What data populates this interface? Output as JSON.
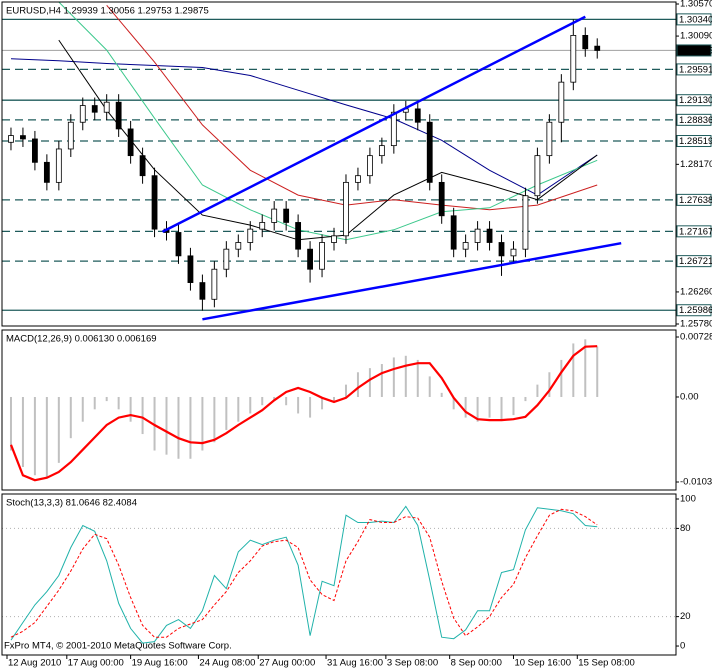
{
  "chart_data": [
    {
      "type": "candlestick",
      "title": "EURUSD,H4  1.29939 1.30056 1.29753 1.29875",
      "xlim": [
        -1.25,
        167.75
      ],
      "ylim": [
        1.2575,
        1.306
      ],
      "yticks": [
        {
          "value": 1.3057,
          "label": "1.30570"
        },
        {
          "value": 1.3009,
          "label": "1.30090"
        },
        {
          "value": 1.2817,
          "label": "1.28170"
        },
        {
          "value": 1.2626,
          "label": "1.26260"
        },
        {
          "value": 1.2578,
          "label": "1.25780"
        }
      ],
      "x": [
        1,
        4,
        7,
        10,
        13,
        16,
        19,
        22,
        25,
        28,
        31,
        34,
        37,
        40,
        43,
        46,
        49,
        52,
        55,
        58,
        61,
        64,
        67,
        70,
        73,
        76,
        79,
        82,
        85,
        88,
        91,
        94,
        97,
        100,
        103,
        106,
        109,
        112,
        115,
        118,
        121,
        124,
        127,
        130,
        133,
        136,
        139,
        142,
        145,
        148
      ],
      "open": [
        1.285,
        1.286,
        1.2855,
        1.282,
        1.279,
        1.284,
        1.288,
        1.2905,
        1.2895,
        1.291,
        1.287,
        1.283,
        1.28,
        1.272,
        1.2715,
        1.268,
        1.264,
        1.2615,
        1.266,
        1.269,
        1.27,
        1.272,
        1.273,
        1.275,
        1.273,
        1.269,
        1.266,
        1.27,
        1.271,
        1.279,
        1.28,
        1.283,
        1.2845,
        1.2895,
        1.29,
        1.288,
        1.279,
        1.274,
        1.269,
        1.27,
        1.272,
        1.27,
        1.268,
        1.269,
        1.277,
        1.283,
        1.288,
        1.294,
        1.301,
        1.29939
      ],
      "high": [
        1.2872,
        1.2872,
        1.2867,
        1.2832,
        1.2852,
        1.2892,
        1.2917,
        1.2917,
        1.2922,
        1.2922,
        1.2882,
        1.2842,
        1.2812,
        1.2732,
        1.2727,
        1.2692,
        1.2652,
        1.2672,
        1.2702,
        1.2712,
        1.2732,
        1.2742,
        1.2762,
        1.2762,
        1.2742,
        1.2702,
        1.2712,
        1.2722,
        1.2802,
        1.2812,
        1.2842,
        1.2857,
        1.2907,
        1.2912,
        1.2912,
        1.2892,
        1.2802,
        1.2752,
        1.2712,
        1.2732,
        1.2732,
        1.2712,
        1.2702,
        1.2782,
        1.2842,
        1.2892,
        1.2952,
        1.3034,
        1.3022,
        1.30056
      ],
      "low": [
        1.2838,
        1.2843,
        1.2808,
        1.2778,
        1.2778,
        1.2828,
        1.2868,
        1.2883,
        1.2883,
        1.2858,
        1.2818,
        1.2788,
        1.2708,
        1.2703,
        1.2668,
        1.2628,
        1.2598,
        1.2603,
        1.2648,
        1.2678,
        1.2688,
        1.2708,
        1.2718,
        1.2718,
        1.2678,
        1.264,
        1.2648,
        1.2688,
        1.2698,
        1.2778,
        1.2788,
        1.2818,
        1.2833,
        1.2883,
        1.2868,
        1.2778,
        1.2728,
        1.2678,
        1.2678,
        1.2688,
        1.2688,
        1.265,
        1.2668,
        1.2678,
        1.2758,
        1.2818,
        1.285,
        1.2928,
        1.2978,
        1.29753
      ],
      "close": [
        1.286,
        1.2855,
        1.282,
        1.279,
        1.284,
        1.288,
        1.2905,
        1.2895,
        1.291,
        1.287,
        1.283,
        1.28,
        1.272,
        1.2715,
        1.268,
        1.264,
        1.2615,
        1.266,
        1.269,
        1.27,
        1.272,
        1.273,
        1.275,
        1.273,
        1.269,
        1.266,
        1.27,
        1.271,
        1.279,
        1.28,
        1.283,
        1.2845,
        1.2895,
        1.29,
        1.288,
        1.279,
        1.274,
        1.269,
        1.27,
        1.272,
        1.27,
        1.268,
        1.269,
        1.277,
        1.283,
        1.288,
        1.294,
        1.301,
        1.299,
        1.29875
      ],
      "up_color": "#ffffff",
      "down_color": "#000000",
      "level_color": "#1f5b5b",
      "levels": [
        {
          "value": 1.3034,
          "label": "1.30340",
          "style": "solid"
        },
        {
          "value": 1.29875,
          "style": "current"
        },
        {
          "value": 1.29591,
          "style": "dashed"
        },
        {
          "value": 1.2913,
          "label": "1.29130",
          "style": "solid"
        },
        {
          "value": 1.28836,
          "style": "dashed"
        },
        {
          "value": 1.28519,
          "style": "dashed"
        },
        {
          "value": 1.27638,
          "style": "dashed"
        },
        {
          "value": 1.27167,
          "style": "dashed"
        },
        {
          "value": 1.26721,
          "style": "dashed"
        },
        {
          "value": 1.25986,
          "style": "solid"
        }
      ],
      "mas": [
        {
          "color": "#00008b",
          "x": [
            1,
            13,
            25,
            37,
            49,
            61,
            73,
            85,
            97,
            109,
            121,
            133,
            148
          ],
          "values": [
            1.2975,
            1.2972,
            1.2968,
            1.2965,
            1.2962,
            1.295,
            1.2928,
            1.2906,
            1.2885,
            1.2853,
            1.2808,
            1.2771,
            1.2831
          ]
        },
        {
          "color": "#cc2020",
          "x": [
            1,
            13,
            25,
            37,
            49,
            61,
            73,
            85,
            97,
            109,
            121,
            133,
            148
          ],
          "values": [
            null,
            null,
            1.3055,
            1.297,
            1.2876,
            1.2808,
            1.2771,
            1.2756,
            1.2764,
            1.2756,
            1.2749,
            1.2756,
            1.2786
          ]
        },
        {
          "color": "#3cc88c",
          "x": [
            1,
            13,
            25,
            37,
            49,
            61,
            73,
            85,
            97,
            109,
            121,
            133,
            148
          ],
          "values": [
            null,
            1.306,
            1.2988,
            1.2886,
            1.2786,
            1.2749,
            1.2719,
            1.2704,
            1.2719,
            1.2746,
            1.2752,
            1.2786,
            1.2823
          ]
        },
        {
          "color": "#000000",
          "x": [
            1,
            13,
            25,
            37,
            49,
            61,
            73,
            85,
            97,
            109,
            121,
            133,
            148
          ],
          "values": [
            null,
            1.3003,
            1.2898,
            1.2809,
            1.2741,
            1.2726,
            1.2704,
            1.2711,
            1.2771,
            1.2805,
            1.2786,
            1.2764,
            1.2831
          ]
        }
      ],
      "trendlines": [
        {
          "color": "#0000ff",
          "x": [
            39,
            145
          ],
          "values": [
            1.2716,
            1.3038
          ]
        },
        {
          "color": "#0000ff",
          "x": [
            49,
            154
          ],
          "values": [
            1.2585,
            1.2699
          ]
        }
      ]
    },
    {
      "type": "macd",
      "title": "MACD(12,26,9) 0.006130 0.006169",
      "xlim": [
        -1.25,
        167.75
      ],
      "ylim": [
        -0.01129,
        0.00813
      ],
      "yticks": [
        0.00728,
        {
          "value": 0,
          "label": "0.00"
        },
        -0.01032
      ],
      "x": [
        1,
        4,
        7,
        10,
        13,
        16,
        19,
        22,
        25,
        28,
        31,
        34,
        37,
        40,
        43,
        46,
        49,
        52,
        55,
        58,
        61,
        64,
        67,
        70,
        73,
        76,
        79,
        82,
        85,
        88,
        91,
        94,
        97,
        100,
        103,
        106,
        109,
        112,
        115,
        118,
        121,
        124,
        127,
        130,
        133,
        136,
        139,
        142,
        145,
        148
      ],
      "series": [
        {
          "style": "histogram",
          "color": "#c0c0c0",
          "values": [
            -0.0065,
            -0.0085,
            -0.0095,
            -0.0098,
            -0.008,
            -0.005,
            -0.003,
            -0.0015,
            -0.0005,
            -0.0015,
            -0.003,
            -0.0045,
            -0.0065,
            -0.007,
            -0.0075,
            -0.0075,
            -0.0065,
            -0.0055,
            -0.004,
            -0.003,
            -0.002,
            -0.001,
            -0.0005,
            -0.001,
            -0.002,
            -0.0025,
            -0.0015,
            -0.0005,
            0.0015,
            0.003,
            0.0035,
            0.004,
            0.0048,
            0.005,
            0.0045,
            0.0025,
            0.0005,
            -0.0015,
            -0.0025,
            -0.003,
            -0.0025,
            -0.0028,
            -0.0022,
            -0.0005,
            0.0015,
            0.003,
            0.0045,
            0.0065,
            0.007,
            0.00613
          ]
        },
        {
          "style": "line",
          "color": "#ff0000",
          "values": [
            -0.0058,
            -0.0095,
            -0.0101,
            -0.0098,
            -0.0091,
            -0.0079,
            -0.0064,
            -0.0049,
            -0.0034,
            -0.0025,
            -0.0022,
            -0.0025,
            -0.0034,
            -0.0042,
            -0.005,
            -0.0055,
            -0.0056,
            -0.0052,
            -0.0044,
            -0.0034,
            -0.0025,
            -0.0016,
            -0.0004,
            0.0006,
            0.0011,
            0.0006,
            -0.0001,
            -0.0006,
            -0.0001,
            0.0011,
            0.0021,
            0.0029,
            0.0034,
            0.0038,
            0.0041,
            0.0041,
            0.0023,
            -0.0001,
            -0.0018,
            -0.0027,
            -0.0028,
            -0.0028,
            -0.0027,
            -0.0024,
            -0.001,
            0.0008,
            0.003,
            0.005,
            0.0061,
            0.006169
          ]
        }
      ]
    },
    {
      "type": "stochastic",
      "title": "Stoch(13,3,3) 81.0646 82.4084",
      "xlim": [
        -1.25,
        167.75
      ],
      "ylim": [
        -6.1,
        103.4
      ],
      "yticks": [
        100,
        80,
        20,
        0
      ],
      "levels": [
        80,
        20
      ],
      "x": [
        1,
        4,
        7,
        10,
        13,
        16,
        19,
        22,
        25,
        28,
        31,
        34,
        37,
        40,
        43,
        46,
        49,
        52,
        55,
        58,
        61,
        64,
        67,
        70,
        73,
        76,
        79,
        82,
        85,
        88,
        91,
        94,
        97,
        100,
        103,
        106,
        109,
        112,
        115,
        118,
        121,
        124,
        127,
        130,
        133,
        136,
        139,
        142,
        145,
        148
      ],
      "series": [
        {
          "style": "line",
          "color": "#20b2aa",
          "values": [
            4,
            16,
            28,
            37,
            48,
            67,
            82,
            78,
            58,
            29,
            12,
            2,
            3,
            14,
            18,
            12,
            24,
            48,
            39,
            64,
            72,
            69,
            72,
            74,
            55,
            7,
            44,
            41,
            89,
            84,
            84,
            85,
            84,
            95,
            82,
            45,
            6,
            5,
            11,
            24,
            24,
            50,
            52,
            79,
            94,
            93,
            92,
            90,
            82,
            81.0646
          ]
        },
        {
          "style": "dashed",
          "color": "#ff0000",
          "values": [
            6,
            10,
            16,
            27,
            38,
            51,
            66,
            76,
            73,
            55,
            33,
            14,
            6,
            6,
            12,
            15,
            18,
            28,
            37,
            50,
            58,
            68,
            71,
            72,
            67,
            45,
            35,
            31,
            58,
            71,
            86,
            84,
            84,
            88,
            87,
            74,
            44,
            19,
            7,
            13,
            20,
            33,
            42,
            60,
            75,
            89,
            93,
            92,
            88,
            82.4084
          ]
        }
      ],
      "xticks": [
        {
          "value": 0,
          "label": "12 Aug 2010"
        },
        {
          "value": 15,
          "label": "17 Aug 00:00"
        },
        {
          "value": 31,
          "label": "19 Aug 16:00"
        },
        {
          "value": 48,
          "label": "24 Aug 08:00"
        },
        {
          "value": 63,
          "label": "27 Aug 00:00"
        },
        {
          "value": 80,
          "label": "31 Aug 16:00"
        },
        {
          "value": 95,
          "label": "3 Sep 08:00"
        },
        {
          "value": 111,
          "label": "8 Sep 00:00"
        },
        {
          "value": 127,
          "label": "10 Sep 16:00"
        },
        {
          "value": 143,
          "label": "15 Sep 08:00"
        }
      ]
    }
  ],
  "footer": "FxPro MT4, © 2001-2010 MetaQuotes Software Corp."
}
